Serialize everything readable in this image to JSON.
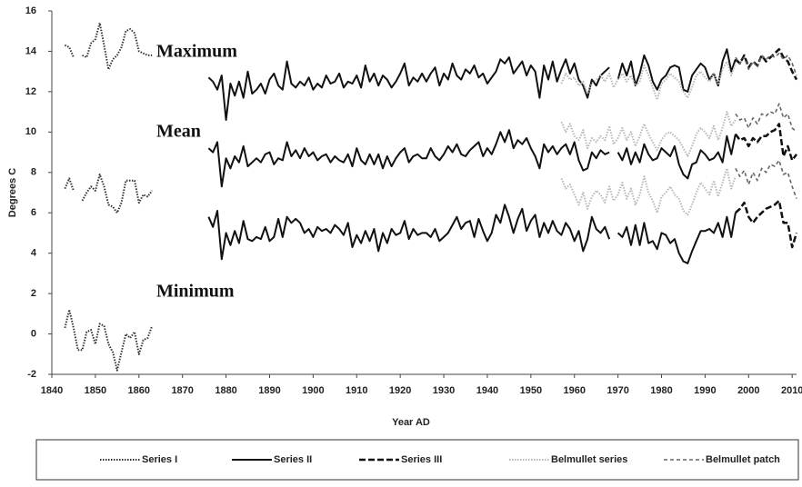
{
  "chart_data": {
    "type": "line",
    "x_label": "Year AD",
    "y_label": "Degrees C",
    "annotations": [
      "Maximum",
      "Mean",
      "Minimum"
    ],
    "xlim": [
      1840,
      2011
    ],
    "xticks": [
      1840,
      1850,
      1860,
      1870,
      1880,
      1890,
      1900,
      1910,
      1920,
      1930,
      1940,
      1950,
      1960,
      1970,
      1980,
      1990,
      2000,
      2010
    ],
    "ylim": [
      -2,
      16
    ],
    "yticks": [
      -2,
      0,
      2,
      4,
      6,
      8,
      10,
      12,
      14,
      16
    ],
    "legend": "bottom",
    "series": [
      {
        "name": "Series I",
        "color": "#333333",
        "style": "dotted",
        "x": [
          1843,
          1844,
          1845,
          1846,
          1847,
          1848,
          1849,
          1850,
          1851,
          1852,
          1853,
          1854,
          1855,
          1856,
          1857,
          1858,
          1859,
          1860,
          1861,
          1862,
          1863
        ],
        "values": [
          [
            14.3,
            14.2,
            13.7,
            null,
            13.8,
            13.7,
            14.4,
            14.6,
            15.4,
            14.3,
            13.1,
            13.6,
            13.8,
            14.2,
            15.0,
            15.1,
            14.9,
            14.0,
            13.9,
            13.8,
            13.8
          ],
          [
            7.2,
            7.7,
            7.1,
            null,
            6.6,
            7.0,
            7.3,
            7.1,
            7.9,
            7.3,
            6.4,
            6.3,
            6.0,
            6.5,
            7.6,
            7.6,
            7.6,
            6.5,
            6.9,
            6.8,
            7.1
          ],
          [
            0.3,
            1.2,
            0.3,
            -0.8,
            -0.8,
            0.1,
            0.2,
            -0.5,
            0.5,
            0.4,
            -0.5,
            -0.9,
            -1.8,
            -0.9,
            0.0,
            -0.2,
            0.1,
            -1.0,
            -0.3,
            -0.2,
            0.4
          ]
        ]
      },
      {
        "name": "Series II",
        "color": "#111111",
        "style": "solid",
        "x": [
          1876,
          1877,
          1878,
          1879,
          1880,
          1881,
          1882,
          1883,
          1884,
          1885,
          1886,
          1887,
          1888,
          1889,
          1890,
          1891,
          1892,
          1893,
          1894,
          1895,
          1896,
          1897,
          1898,
          1899,
          1900,
          1901,
          1902,
          1903,
          1904,
          1905,
          1906,
          1907,
          1908,
          1909,
          1910,
          1911,
          1912,
          1913,
          1914,
          1915,
          1916,
          1917,
          1918,
          1919,
          1920,
          1921,
          1922,
          1923,
          1924,
          1925,
          1926,
          1927,
          1928,
          1929,
          1930,
          1931,
          1932,
          1933,
          1934,
          1935,
          1936,
          1937,
          1938,
          1939,
          1940,
          1941,
          1942,
          1943,
          1944,
          1945,
          1946,
          1947,
          1948,
          1949,
          1950,
          1951,
          1952,
          1953,
          1954,
          1955,
          1956,
          1957,
          1958,
          1959,
          1960,
          1961,
          1962,
          1963,
          1964,
          1965,
          1966,
          1967,
          1968,
          1969,
          1970,
          1971,
          1972,
          1973,
          1974,
          1975,
          1976,
          1977,
          1978,
          1979,
          1980,
          1981,
          1982,
          1983,
          1984,
          1985,
          1986,
          1987,
          1988,
          1989,
          1990,
          1991,
          1992,
          1993,
          1994,
          1995,
          1996,
          1997
        ],
        "values": [
          [
            12.7,
            12.5,
            12.1,
            12.8,
            10.6,
            12.4,
            11.8,
            12.5,
            11.7,
            13.0,
            11.9,
            12.1,
            12.4,
            11.9,
            12.6,
            12.9,
            12.3,
            12.1,
            13.5,
            12.4,
            12.2,
            12.5,
            12.3,
            12.7,
            12.1,
            12.4,
            12.2,
            12.8,
            12.4,
            12.5,
            12.9,
            12.2,
            12.5,
            12.4,
            12.8,
            12.2,
            13.3,
            12.5,
            12.9,
            12.3,
            12.8,
            12.6,
            12.2,
            12.5,
            12.9,
            13.4,
            12.3,
            12.7,
            12.5,
            12.9,
            12.5,
            12.9,
            13.2,
            12.3,
            12.9,
            12.6,
            13.4,
            12.8,
            12.6,
            13.1,
            12.9,
            13.3,
            12.7,
            12.9,
            12.4,
            12.7,
            13.0,
            13.6,
            13.4,
            13.7,
            12.9,
            13.2,
            13.5,
            12.8,
            13.3,
            13.0,
            11.7,
            13.3,
            12.6,
            13.5,
            12.5,
            13.1,
            13.6,
            12.9,
            13.4,
            12.6,
            12.3,
            11.7,
            12.6,
            12.3,
            12.8,
            13.0,
            13.2,
            null,
            12.6,
            13.4,
            12.8,
            13.5,
            12.3,
            12.9,
            13.8,
            13.3,
            12.5,
            12.1,
            12.6,
            12.8,
            13.2,
            13.3,
            13.2,
            12.1,
            12.0,
            12.8,
            13.1,
            13.4,
            13.2,
            12.6,
            12.9,
            12.3,
            13.5,
            14.1,
            13.0,
            13.6
          ],
          [
            9.2,
            9.0,
            9.5,
            7.3,
            8.7,
            8.2,
            8.8,
            8.5,
            9.3,
            8.3,
            8.5,
            8.7,
            8.5,
            8.9,
            9.0,
            8.4,
            8.7,
            8.6,
            9.5,
            8.8,
            9.1,
            8.7,
            9.2,
            8.8,
            9.0,
            8.6,
            8.8,
            8.9,
            8.5,
            8.8,
            8.6,
            8.5,
            8.9,
            8.3,
            9.2,
            8.6,
            8.4,
            8.9,
            8.4,
            8.9,
            8.2,
            8.8,
            8.3,
            8.7,
            9.0,
            9.2,
            8.5,
            8.8,
            8.9,
            8.7,
            8.7,
            9.2,
            8.8,
            8.6,
            8.9,
            9.3,
            9.0,
            9.4,
            8.9,
            8.8,
            9.1,
            9.3,
            9.5,
            8.8,
            9.2,
            8.9,
            9.4,
            10.0,
            9.5,
            10.1,
            9.2,
            9.6,
            9.4,
            9.7,
            9.2,
            8.8,
            8.2,
            9.4,
            9.0,
            9.3,
            8.9,
            9.2,
            9.4,
            8.9,
            9.5,
            8.6,
            8.1,
            8.2,
            9.0,
            8.7,
            9.1,
            8.9,
            9.0,
            null,
            9.0,
            8.6,
            9.2,
            8.4,
            9.0,
            8.5,
            9.4,
            8.9,
            8.6,
            8.7,
            9.2,
            9.0,
            8.8,
            9.3,
            8.4,
            7.9,
            7.7,
            8.4,
            8.5,
            9.1,
            8.9,
            8.6,
            8.7,
            9.0,
            8.5,
            9.8,
            8.9,
            9.9
          ],
          [
            5.8,
            5.3,
            6.1,
            3.7,
            5.0,
            4.4,
            5.1,
            4.5,
            5.6,
            4.7,
            4.6,
            4.8,
            4.7,
            5.3,
            4.6,
            4.8,
            5.7,
            4.8,
            5.8,
            5.5,
            5.7,
            5.5,
            5.0,
            5.2,
            4.8,
            5.3,
            5.1,
            5.2,
            5.0,
            5.4,
            5.2,
            4.9,
            5.5,
            4.3,
            4.9,
            4.5,
            5.1,
            4.6,
            5.2,
            4.1,
            5.0,
            4.5,
            5.2,
            4.9,
            5.0,
            5.6,
            4.7,
            5.2,
            4.9,
            5.0,
            5.0,
            4.8,
            5.2,
            4.6,
            4.8,
            5.0,
            5.4,
            5.8,
            5.2,
            5.5,
            5.6,
            4.8,
            5.7,
            5.1,
            4.6,
            5.0,
            5.9,
            5.5,
            6.4,
            5.8,
            5.0,
            5.7,
            6.2,
            5.1,
            5.6,
            5.9,
            4.8,
            5.5,
            5.0,
            5.6,
            5.1,
            4.9,
            5.5,
            5.2,
            4.6,
            5.1,
            4.1,
            4.7,
            5.8,
            5.2,
            5.0,
            5.3,
            4.7,
            null,
            5.0,
            4.8,
            5.3,
            4.4,
            5.4,
            4.4,
            5.5,
            4.5,
            4.6,
            4.2,
            5.0,
            4.9,
            4.5,
            4.7,
            4.0,
            3.6,
            3.5,
            4.1,
            4.6,
            5.1,
            5.1,
            5.2,
            5.0,
            5.5,
            4.8,
            5.8,
            4.8,
            6.0
          ]
        ]
      },
      {
        "name": "Series III",
        "color": "#111111",
        "style": "dashed",
        "x": [
          1997,
          1998,
          1999,
          2000,
          2001,
          2002,
          2003,
          2004,
          2005,
          2006,
          2007,
          2008,
          2009,
          2010,
          2011
        ],
        "values": [
          [
            13.6,
            13.4,
            13.8,
            13.2,
            13.5,
            13.3,
            13.8,
            13.5,
            13.7,
            13.9,
            14.1,
            13.7,
            13.5,
            13.0,
            12.6
          ],
          [
            9.9,
            9.6,
            9.7,
            9.3,
            9.7,
            9.5,
            9.8,
            9.8,
            10.0,
            10.1,
            10.4,
            8.8,
            9.3,
            8.6,
            8.9
          ],
          [
            6.0,
            6.2,
            6.5,
            5.8,
            5.5,
            5.8,
            6.0,
            6.2,
            6.3,
            6.4,
            6.6,
            5.5,
            5.5,
            4.3,
            5.0
          ]
        ]
      },
      {
        "name": "Belmullet series",
        "color": "#b8b8b8",
        "style": "dotted",
        "x": [
          1957,
          1958,
          1959,
          1960,
          1961,
          1962,
          1963,
          1964,
          1965,
          1966,
          1967,
          1968,
          1969,
          1970,
          1971,
          1972,
          1973,
          1974,
          1975,
          1976,
          1977,
          1978,
          1979,
          1980,
          1981,
          1982,
          1983,
          1984,
          1985,
          1986,
          1987,
          1988,
          1989,
          1990,
          1991,
          1992,
          1993,
          1994,
          1995,
          1996,
          1997
        ],
        "values": [
          [
            12.4,
            12.9,
            12.6,
            12.7,
            12.3,
            12.5,
            11.9,
            12.4,
            12.6,
            12.8,
            12.5,
            12.9,
            12.2,
            12.6,
            12.9,
            12.5,
            12.8,
            12.3,
            12.5,
            13.3,
            12.8,
            12.2,
            11.6,
            12.4,
            12.6,
            12.9,
            12.7,
            12.5,
            12.0,
            11.7,
            12.2,
            12.8,
            13.0,
            12.7,
            12.5,
            12.9,
            12.4,
            13.1,
            13.5,
            12.8,
            13.4
          ],
          [
            10.5,
            10.0,
            10.4,
            9.8,
            9.6,
            10.1,
            9.2,
            9.7,
            9.5,
            9.8,
            9.6,
            10.3,
            9.4,
            9.7,
            10.2,
            9.6,
            10.0,
            9.3,
            9.8,
            10.4,
            9.9,
            9.5,
            9.1,
            9.6,
            9.9,
            10.0,
            9.8,
            9.6,
            9.2,
            8.8,
            9.3,
            9.9,
            10.2,
            10.0,
            9.7,
            10.3,
            9.6,
            10.2,
            11.0,
            10.3,
            10.6
          ],
          [
            7.7,
            7.2,
            7.4,
            6.9,
            6.4,
            7.0,
            6.2,
            6.8,
            7.1,
            6.9,
            6.5,
            7.3,
            6.6,
            6.9,
            7.5,
            6.7,
            7.2,
            6.4,
            6.9,
            7.8,
            7.0,
            6.6,
            6.0,
            6.8,
            7.0,
            7.3,
            6.9,
            6.7,
            6.1,
            5.9,
            6.4,
            7.0,
            7.5,
            7.2,
            6.9,
            7.6,
            6.8,
            7.5,
            8.2,
            7.2,
            7.8
          ]
        ]
      },
      {
        "name": "Belmullet patch",
        "color": "#666666",
        "style": "dashed-thin",
        "x": [
          1997,
          1998,
          1999,
          2000,
          2001,
          2002,
          2003,
          2004,
          2005,
          2006,
          2007,
          2008,
          2009,
          2010,
          2011
        ],
        "values": [
          [
            13.7,
            13.4,
            13.7,
            13.1,
            13.5,
            13.2,
            13.8,
            13.6,
            13.8,
            13.7,
            13.9,
            13.6,
            13.8,
            13.4,
            12.8
          ],
          [
            10.9,
            10.6,
            10.7,
            10.2,
            10.7,
            10.4,
            10.9,
            10.8,
            11.0,
            10.9,
            11.4,
            10.7,
            10.9,
            10.2,
            10.0
          ],
          [
            8.2,
            7.8,
            8.1,
            7.4,
            8.0,
            7.6,
            8.2,
            8.0,
            8.4,
            8.3,
            8.6,
            7.9,
            8.0,
            7.3,
            6.7
          ]
        ]
      }
    ]
  }
}
